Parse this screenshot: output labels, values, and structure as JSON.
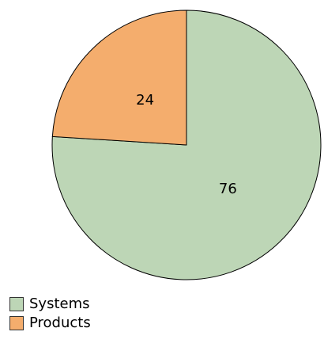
{
  "chart_data": {
    "type": "pie",
    "categories": [
      "Systems",
      "Products"
    ],
    "values": [
      76,
      24
    ],
    "colors": [
      "#bdd6b6",
      "#f4ad6d"
    ],
    "start_angle": 0,
    "direction": "clockwise",
    "legend": "bottom-left"
  }
}
